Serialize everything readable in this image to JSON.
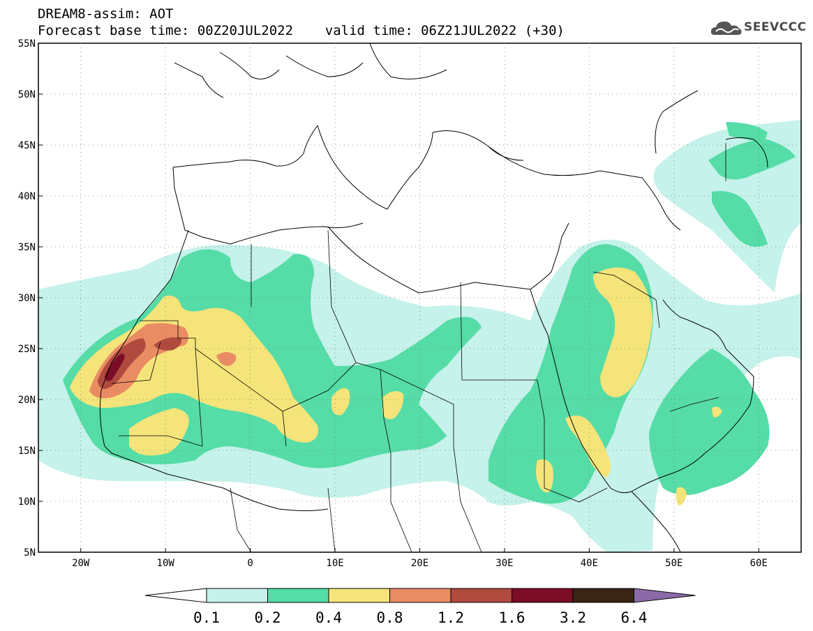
{
  "header": {
    "line1": "DREAM8-assim: AOT",
    "line2": "Forecast base time: 00Z20JUL2022    valid time: 06Z21JUL2022 (+30)"
  },
  "logo": {
    "text": "SEEVCCC",
    "icon": "cloud-icon"
  },
  "map": {
    "projection": "lat-lon",
    "lon_range": [
      -25,
      65
    ],
    "lat_range": [
      5,
      55
    ],
    "lat_ticks": [
      "5N",
      "10N",
      "15N",
      "20N",
      "25N",
      "30N",
      "35N",
      "40N",
      "45N",
      "50N",
      "55N"
    ],
    "lat_tick_values": [
      5,
      10,
      15,
      20,
      25,
      30,
      35,
      40,
      45,
      50,
      55
    ],
    "lon_ticks": [
      "20W",
      "10W",
      "0",
      "10E",
      "20E",
      "30E",
      "40E",
      "50E",
      "60E"
    ],
    "lon_tick_values": [
      -20,
      -10,
      0,
      10,
      20,
      30,
      40,
      50,
      60
    ],
    "grid": "dotted"
  },
  "legend": {
    "labels": [
      "0.1",
      "0.2",
      "0.4",
      "0.8",
      "1.2",
      "1.6",
      "3.2",
      "6.4"
    ],
    "colors": [
      "#ffffff",
      "#c5f2ea",
      "#55dca7",
      "#f5e47a",
      "#e98c64",
      "#b0493e",
      "#7b0d27",
      "#3a2414",
      "#8c6aa8"
    ]
  }
}
